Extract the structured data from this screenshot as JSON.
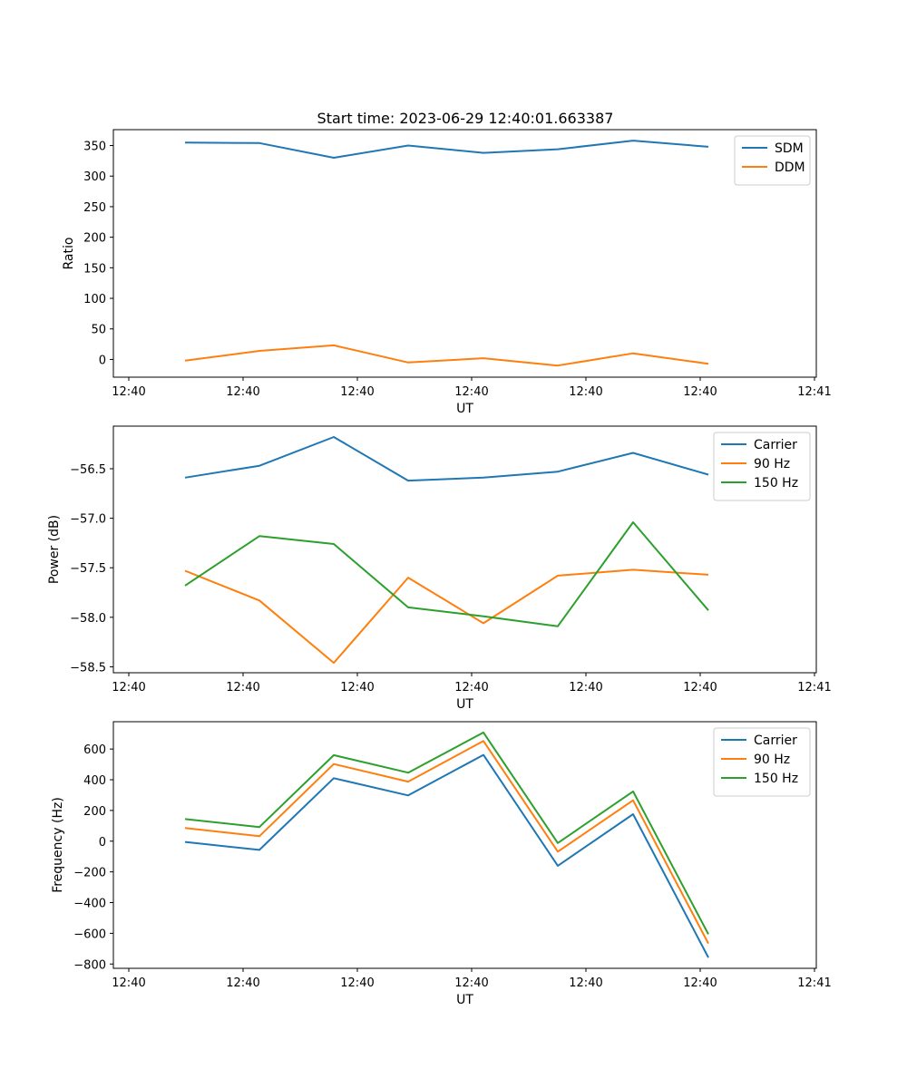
{
  "title": "Start time: 2023-06-29 12:40:01.663387",
  "colors": {
    "blue": "#1f77b4",
    "orange": "#ff7f0e",
    "green": "#2ca02c"
  },
  "chart_data": [
    {
      "type": "line",
      "title": "Start time: 2023-06-29 12:40:01.663387",
      "xlabel": "UT",
      "ylabel": "Ratio",
      "x": [
        1,
        2,
        3,
        4,
        5,
        6,
        7,
        8
      ],
      "x_tick_labels": [
        "12:40",
        "12:40",
        "12:40",
        "12:40",
        "12:40",
        "12:40",
        "12:41"
      ],
      "y_ticks": [
        0,
        50,
        100,
        150,
        200,
        250,
        300,
        350
      ],
      "ylim": [
        -29,
        376
      ],
      "legend": "top-right",
      "series": [
        {
          "name": "SDM",
          "color": "#1f77b4",
          "values": [
            355,
            354,
            330,
            350,
            338,
            344,
            358,
            348
          ]
        },
        {
          "name": "DDM",
          "color": "#ff7f0e",
          "values": [
            -2,
            14,
            23,
            -5,
            2,
            -10,
            10,
            -7
          ]
        }
      ]
    },
    {
      "type": "line",
      "xlabel": "UT",
      "ylabel": "Power (dB)",
      "x": [
        1,
        2,
        3,
        4,
        5,
        6,
        7,
        8
      ],
      "x_tick_labels": [
        "12:40",
        "12:40",
        "12:40",
        "12:40",
        "12:40",
        "12:40",
        "12:41"
      ],
      "y_ticks": [
        -58.5,
        -58.0,
        -57.5,
        -57.0,
        -56.5
      ],
      "y_tick_labels": [
        "−58.5",
        "−58.0",
        "−57.5",
        "−57.0",
        "−56.5"
      ],
      "ylim": [
        -58.56,
        -56.07
      ],
      "legend": "top-right",
      "series": [
        {
          "name": "Carrier",
          "color": "#1f77b4",
          "values": [
            -56.59,
            -56.47,
            -56.18,
            -56.62,
            -56.59,
            -56.53,
            -56.34,
            -56.56
          ]
        },
        {
          "name": "90 Hz",
          "color": "#ff7f0e",
          "values": [
            -57.53,
            -57.83,
            -58.46,
            -57.6,
            -58.06,
            -57.58,
            -57.52,
            -57.57
          ]
        },
        {
          "name": "150 Hz",
          "color": "#2ca02c",
          "values": [
            -57.68,
            -57.18,
            -57.26,
            -57.9,
            -57.99,
            -58.09,
            -57.04,
            -57.93
          ]
        }
      ]
    },
    {
      "type": "line",
      "xlabel": "UT",
      "ylabel": "Frequency (Hz)",
      "x": [
        1,
        2,
        3,
        4,
        5,
        6,
        7,
        8
      ],
      "x_tick_labels": [
        "12:40",
        "12:40",
        "12:40",
        "12:40",
        "12:40",
        "12:40",
        "12:41"
      ],
      "y_ticks": [
        -800,
        -600,
        -400,
        -200,
        0,
        200,
        400,
        600
      ],
      "y_tick_labels": [
        "−800",
        "−600",
        "−400",
        "−200",
        "0",
        "200",
        "400",
        "600"
      ],
      "ylim": [
        -828,
        778
      ],
      "legend": "top-right",
      "series": [
        {
          "name": "Carrier",
          "color": "#1f77b4",
          "values": [
            -5,
            -57,
            410,
            298,
            562,
            -160,
            176,
            -758
          ]
        },
        {
          "name": "90 Hz",
          "color": "#ff7f0e",
          "values": [
            86,
            32,
            502,
            388,
            652,
            -68,
            266,
            -666
          ]
        },
        {
          "name": "150 Hz",
          "color": "#2ca02c",
          "values": [
            144,
            92,
            560,
            446,
            708,
            -12,
            324,
            -606
          ]
        }
      ]
    }
  ]
}
